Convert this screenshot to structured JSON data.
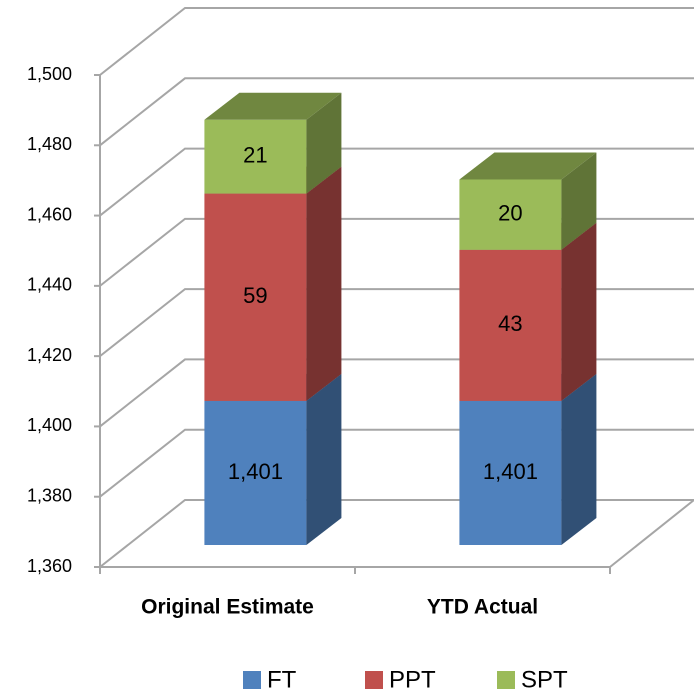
{
  "chart_data": {
    "type": "bar3d_stacked",
    "categories": [
      "Original Estimate",
      "YTD Actual"
    ],
    "series": [
      {
        "name": "FT",
        "color": "#4f81bd",
        "values": [
          1401,
          1401
        ],
        "value_labels": [
          "1,401",
          "1,401"
        ]
      },
      {
        "name": "PPT",
        "color": "#c0504d",
        "values": [
          59,
          43
        ]
      },
      {
        "name": "SPT",
        "color": "#9bbb59",
        "values": [
          21,
          20
        ]
      }
    ],
    "ylim": [
      1360,
      1500
    ],
    "yticks": [
      {
        "value": 1360,
        "label": "1,360"
      },
      {
        "value": 1380,
        "label": "1,380"
      },
      {
        "value": 1400,
        "label": "1,400"
      },
      {
        "value": 1420,
        "label": "1,420"
      },
      {
        "value": 1440,
        "label": "1,440"
      },
      {
        "value": 1460,
        "label": "1,460"
      },
      {
        "value": 1480,
        "label": "1,480"
      },
      {
        "value": 1500,
        "label": "1,500"
      }
    ],
    "grid": true,
    "legend": "bottom"
  }
}
